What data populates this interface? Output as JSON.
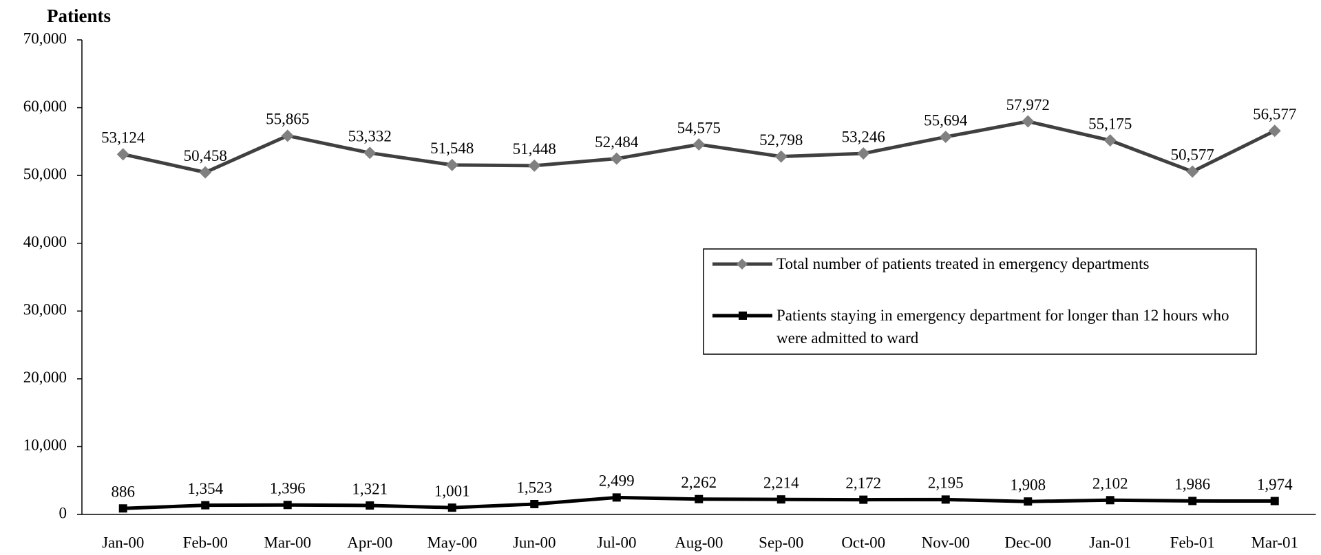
{
  "chart_data": {
    "type": "line",
    "y_axis_title": "Patients",
    "categories": [
      "Jan-00",
      "Feb-00",
      "Mar-00",
      "Apr-00",
      "May-00",
      "Jun-00",
      "Jul-00",
      "Aug-00",
      "Sep-00",
      "Oct-00",
      "Nov-00",
      "Dec-00",
      "Jan-01",
      "Feb-01",
      "Mar-01"
    ],
    "series": [
      {
        "name": "Total number of patients treated in emergency departments",
        "color": "#404040",
        "marker_color": "#808080",
        "marker": "diamond",
        "values": [
          53124,
          50458,
          55865,
          53332,
          51548,
          51448,
          52484,
          54575,
          52798,
          53246,
          55694,
          57972,
          55175,
          50577,
          56577
        ],
        "value_labels": [
          "53,124",
          "50,458",
          "55,865",
          "53,332",
          "51,548",
          "51,448",
          "52,484",
          "54,575",
          "52,798",
          "53,246",
          "55,694",
          "57,972",
          "55,175",
          "50,577",
          "56,577"
        ]
      },
      {
        "name": "Patients staying in emergency department for longer than 12 hours who were admitted to ward",
        "color": "#000000",
        "marker_color": "#000000",
        "marker": "square",
        "values": [
          886,
          1354,
          1396,
          1321,
          1001,
          1523,
          2499,
          2262,
          2214,
          2172,
          2195,
          1908,
          2102,
          1986,
          1974
        ],
        "value_labels": [
          "886",
          "1,354",
          "1,396",
          "1,321",
          "1,001",
          "1,523",
          "2,499",
          "2,262",
          "2,214",
          "2,172",
          "2,195",
          "1,908",
          "2,102",
          "1,986",
          "1,974"
        ]
      }
    ],
    "ylim": [
      0,
      70000
    ],
    "yticks": [
      0,
      {
        "value": 10000,
        "label": "10,000"
      },
      {
        "value": 20000,
        "label": "20,000"
      },
      {
        "value": 30000,
        "label": "30,000"
      },
      {
        "value": 40000,
        "label": "40,000"
      },
      {
        "value": 50000,
        "label": "50,000"
      },
      {
        "value": 60000,
        "label": "60,000"
      },
      {
        "value": 70000,
        "label": "70,000"
      }
    ],
    "grid": false,
    "legend": "right"
  }
}
